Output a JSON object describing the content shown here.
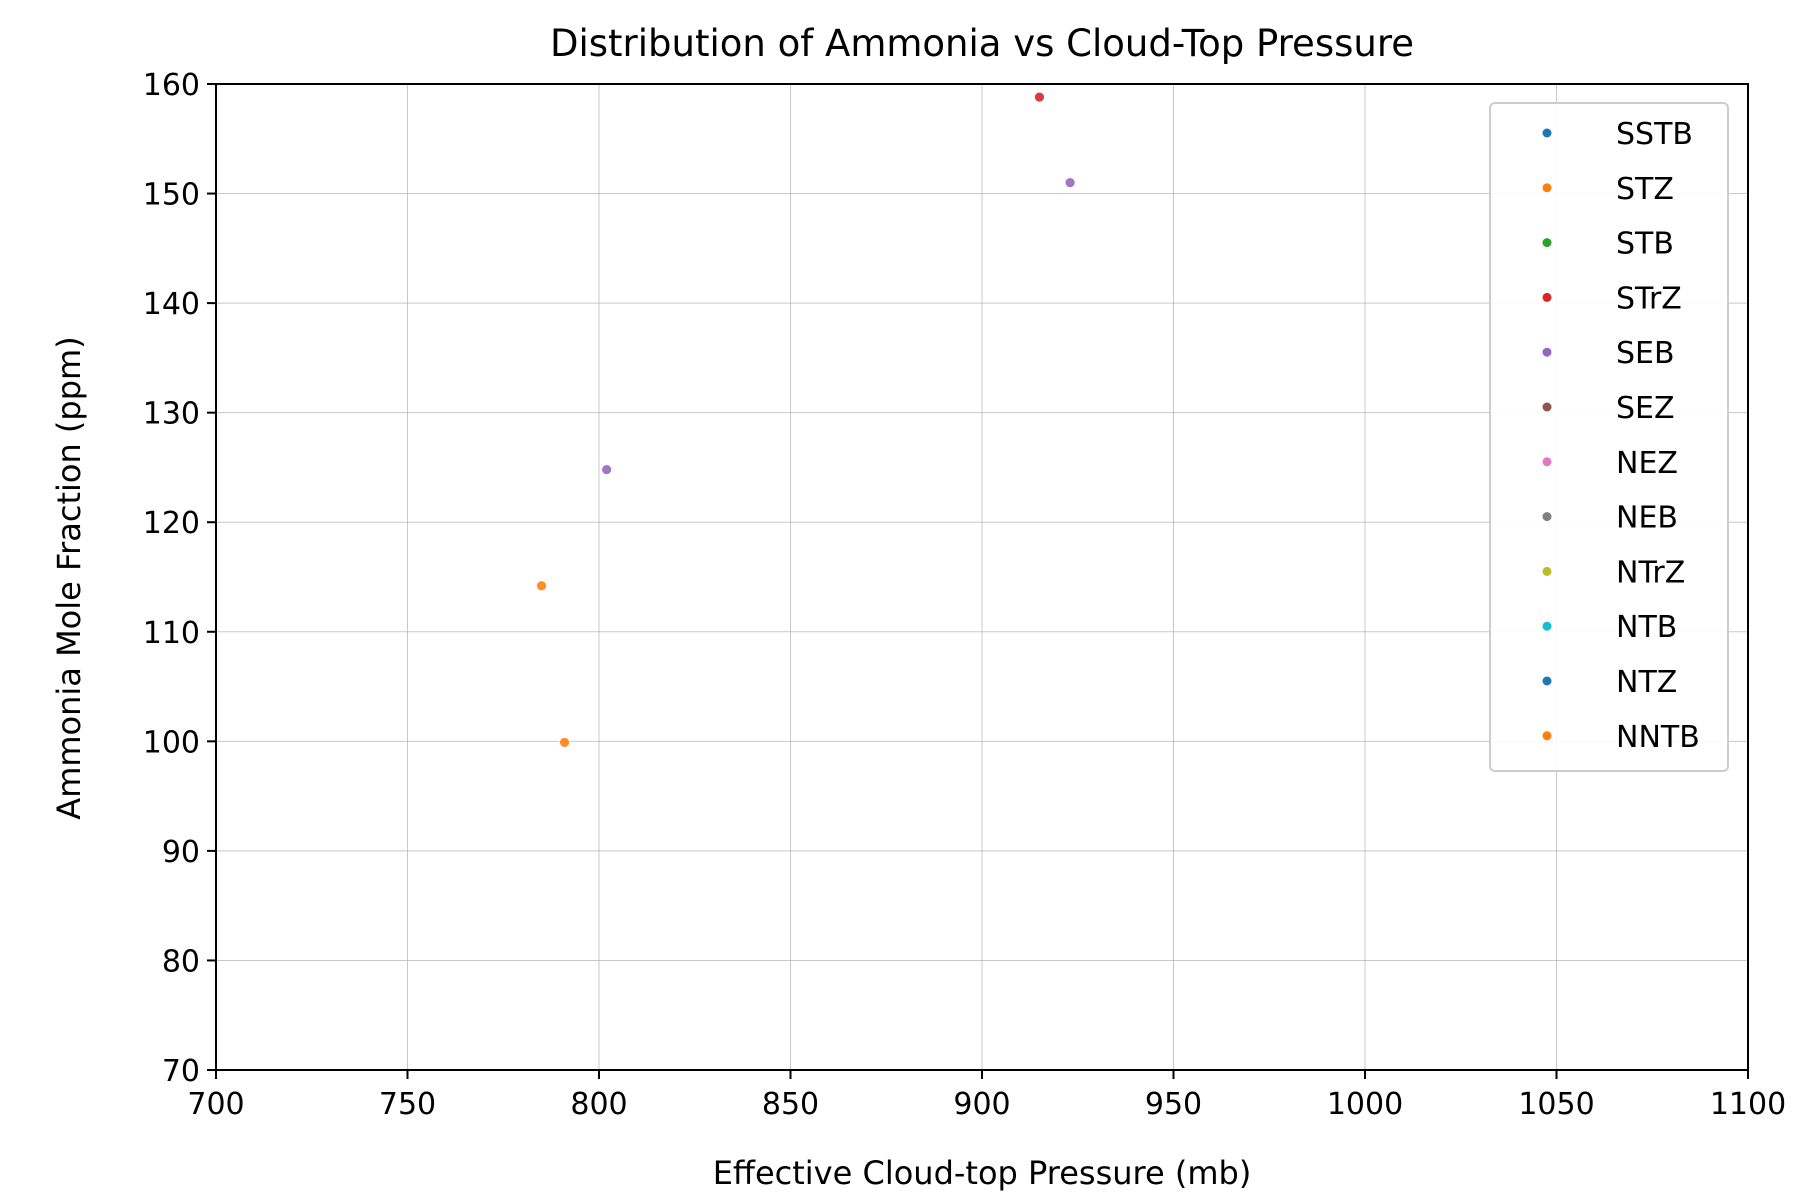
{
  "chart_data": {
    "type": "scatter",
    "title": "Distribution of Ammonia vs Cloud-Top Pressure",
    "xlabel": "Effective Cloud-top Pressure (mb)",
    "ylabel": "Ammonia Mole Fraction (ppm)",
    "xlim": [
      700,
      1100
    ],
    "ylim": [
      70,
      160
    ],
    "xticks": [
      700,
      750,
      800,
      850,
      900,
      950,
      1000,
      1050,
      1100
    ],
    "yticks": [
      70,
      80,
      90,
      100,
      110,
      120,
      130,
      140,
      150,
      160
    ],
    "grid": true,
    "legend_position": "top-right",
    "series": [
      {
        "name": "SSTB",
        "color": "#1f77b4",
        "points": []
      },
      {
        "name": "STZ",
        "color": "#ff7f0e",
        "points": [
          {
            "x": 785,
            "y": 114.2
          },
          {
            "x": 791,
            "y": 99.9
          }
        ]
      },
      {
        "name": "STB",
        "color": "#2ca02c",
        "points": []
      },
      {
        "name": "STrZ",
        "color": "#d62728",
        "points": [
          {
            "x": 915,
            "y": 158.8
          }
        ]
      },
      {
        "name": "SEB",
        "color": "#9467bd",
        "points": [
          {
            "x": 802,
            "y": 124.8
          },
          {
            "x": 923,
            "y": 151.0
          }
        ]
      },
      {
        "name": "SEZ",
        "color": "#8c564b",
        "points": []
      },
      {
        "name": "NEZ",
        "color": "#e377c2",
        "points": []
      },
      {
        "name": "NEB",
        "color": "#7f7f7f",
        "points": []
      },
      {
        "name": "NTrZ",
        "color": "#bcbd22",
        "points": []
      },
      {
        "name": "NTB",
        "color": "#17becf",
        "points": []
      },
      {
        "name": "NTZ",
        "color": "#1f77b4",
        "points": []
      },
      {
        "name": "NNTB",
        "color": "#ff7f0e",
        "points": []
      }
    ]
  }
}
